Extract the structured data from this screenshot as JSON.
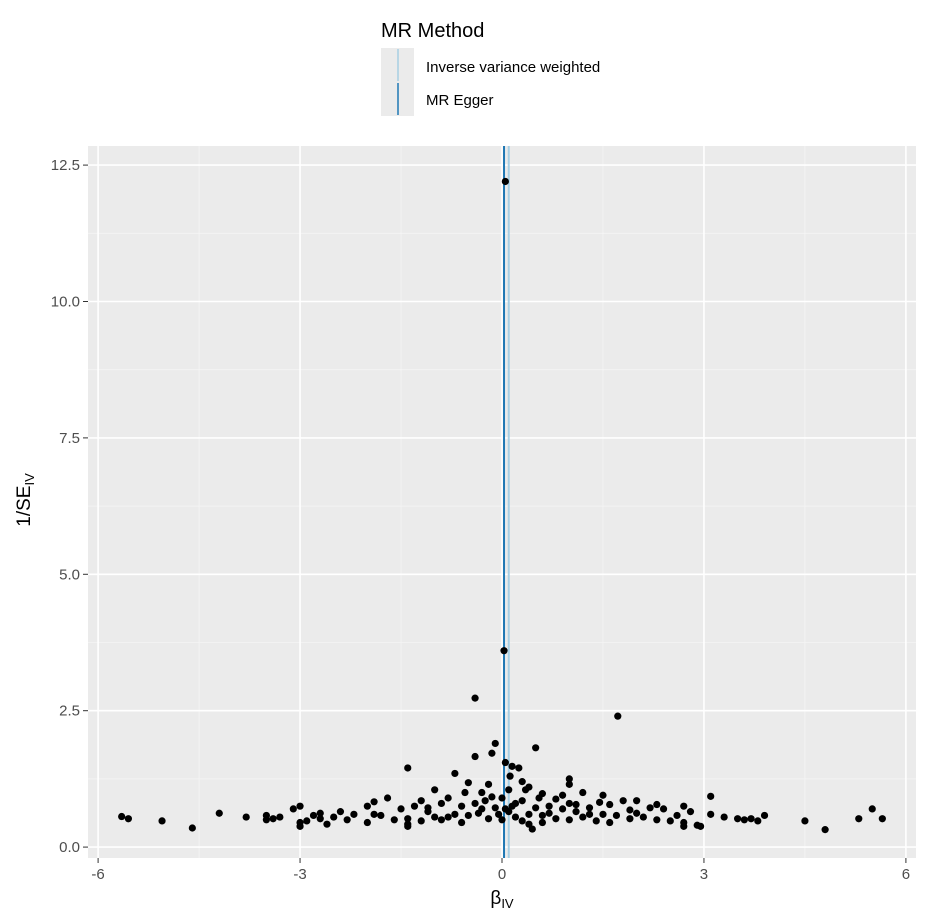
{
  "chart_data": {
    "type": "scatter",
    "x_label_main": "β",
    "x_label_sub": "IV",
    "y_label_main": "1/SE",
    "y_label_sub": "IV",
    "x_ticks": [
      "-6",
      "-3",
      "0",
      "3",
      "6"
    ],
    "y_ticks": [
      "0.0",
      "2.5",
      "5.0",
      "7.5",
      "10.0",
      "12.5"
    ],
    "xlim": [
      -6.15,
      6.15
    ],
    "ylim": [
      -0.2,
      12.85
    ],
    "grid": true,
    "legend": {
      "title": "MR Method",
      "position": "top",
      "entries": [
        {
          "label": "Inverse variance weighted",
          "color": "#a6cee3"
        },
        {
          "label": "MR Egger",
          "color": "#1f78b4"
        }
      ]
    },
    "lines": [
      {
        "name": "Inverse variance weighted",
        "x": 0.1,
        "color": "#a6cee3"
      },
      {
        "name": "MR Egger",
        "x": 0.03,
        "color": "#1f78b4"
      }
    ],
    "points": [
      [
        0.05,
        12.2
      ],
      [
        0.03,
        3.6
      ],
      [
        -0.4,
        2.73
      ],
      [
        1.72,
        2.4
      ],
      [
        -0.1,
        1.9
      ],
      [
        0.5,
        1.82
      ],
      [
        -0.15,
        1.72
      ],
      [
        -0.4,
        1.66
      ],
      [
        0.05,
        1.55
      ],
      [
        0.15,
        1.48
      ],
      [
        0.25,
        1.45
      ],
      [
        -1.4,
        1.45
      ],
      [
        -0.7,
        1.35
      ],
      [
        0.12,
        1.3
      ],
      [
        1.0,
        1.25
      ],
      [
        0.3,
        1.2
      ],
      [
        -0.5,
        1.18
      ],
      [
        -0.2,
        1.15
      ],
      [
        1.0,
        1.15
      ],
      [
        0.4,
        1.1
      ],
      [
        -1.0,
        1.05
      ],
      [
        0.1,
        1.05
      ],
      [
        1.2,
        1.0
      ],
      [
        -0.3,
        1.0
      ],
      [
        0.6,
        0.98
      ],
      [
        1.5,
        0.95
      ],
      [
        3.1,
        0.93
      ],
      [
        -1.7,
        0.9
      ],
      [
        -0.8,
        0.9
      ],
      [
        0.0,
        0.9
      ],
      [
        0.8,
        0.88
      ],
      [
        2.0,
        0.85
      ],
      [
        -1.2,
        0.85
      ],
      [
        1.8,
        0.85
      ],
      [
        0.3,
        0.85
      ],
      [
        -1.9,
        0.83
      ],
      [
        -0.4,
        0.8
      ],
      [
        0.2,
        0.8
      ],
      [
        1.0,
        0.8
      ],
      [
        -0.9,
        0.8
      ],
      [
        2.3,
        0.78
      ],
      [
        1.6,
        0.78
      ],
      [
        -3.0,
        0.75
      ],
      [
        -2.0,
        0.75
      ],
      [
        -1.3,
        0.75
      ],
      [
        -0.6,
        0.75
      ],
      [
        0.7,
        0.75
      ],
      [
        2.7,
        0.75
      ],
      [
        -0.1,
        0.72
      ],
      [
        0.5,
        0.72
      ],
      [
        1.3,
        0.72
      ],
      [
        2.2,
        0.72
      ],
      [
        5.5,
        0.7
      ],
      [
        -3.1,
        0.7
      ],
      [
        -1.5,
        0.7
      ],
      [
        -0.3,
        0.7
      ],
      [
        0.9,
        0.7
      ],
      [
        2.4,
        0.7
      ],
      [
        1.9,
        0.68
      ],
      [
        -2.4,
        0.65
      ],
      [
        -1.1,
        0.65
      ],
      [
        0.1,
        0.65
      ],
      [
        1.1,
        0.65
      ],
      [
        2.8,
        0.65
      ],
      [
        -4.2,
        0.62
      ],
      [
        -2.2,
        0.6
      ],
      [
        -0.7,
        0.6
      ],
      [
        0.4,
        0.6
      ],
      [
        1.5,
        0.6
      ],
      [
        3.1,
        0.6
      ],
      [
        3.9,
        0.58
      ],
      [
        -3.5,
        0.58
      ],
      [
        -2.8,
        0.58
      ],
      [
        -1.8,
        0.58
      ],
      [
        -0.5,
        0.58
      ],
      [
        0.6,
        0.58
      ],
      [
        1.7,
        0.58
      ],
      [
        2.6,
        0.58
      ],
      [
        -5.65,
        0.56
      ],
      [
        -3.3,
        0.55
      ],
      [
        -2.5,
        0.55
      ],
      [
        -1.0,
        0.55
      ],
      [
        0.2,
        0.55
      ],
      [
        1.2,
        0.55
      ],
      [
        2.1,
        0.55
      ],
      [
        -5.55,
        0.52
      ],
      [
        -3.4,
        0.52
      ],
      [
        -2.7,
        0.52
      ],
      [
        -1.4,
        0.52
      ],
      [
        -0.2,
        0.52
      ],
      [
        0.8,
        0.52
      ],
      [
        1.9,
        0.52
      ],
      [
        3.5,
        0.52
      ],
      [
        3.7,
        0.52
      ],
      [
        5.3,
        0.52
      ],
      [
        5.65,
        0.52
      ],
      [
        -3.5,
        0.5
      ],
      [
        -2.3,
        0.5
      ],
      [
        -1.6,
        0.5
      ],
      [
        -0.9,
        0.5
      ],
      [
        0.0,
        0.5
      ],
      [
        1.0,
        0.5
      ],
      [
        2.3,
        0.5
      ],
      [
        3.6,
        0.5
      ],
      [
        -5.05,
        0.48
      ],
      [
        -2.9,
        0.48
      ],
      [
        -1.2,
        0.48
      ],
      [
        0.3,
        0.48
      ],
      [
        1.4,
        0.48
      ],
      [
        2.5,
        0.48
      ],
      [
        3.8,
        0.48
      ],
      [
        4.5,
        0.48
      ],
      [
        -3.0,
        0.45
      ],
      [
        -2.0,
        0.45
      ],
      [
        -0.6,
        0.45
      ],
      [
        0.6,
        0.45
      ],
      [
        1.6,
        0.45
      ],
      [
        2.7,
        0.45
      ],
      [
        -2.6,
        0.42
      ],
      [
        -1.4,
        0.42
      ],
      [
        0.4,
        0.42
      ],
      [
        2.9,
        0.4
      ],
      [
        -3.0,
        0.38
      ],
      [
        -1.4,
        0.38
      ],
      [
        2.7,
        0.38
      ],
      [
        2.95,
        0.38
      ],
      [
        -4.6,
        0.35
      ],
      [
        0.45,
        0.33
      ],
      [
        4.8,
        0.32
      ],
      [
        -0.8,
        0.55
      ],
      [
        0.7,
        0.62
      ],
      [
        1.3,
        0.6
      ],
      [
        -0.35,
        0.62
      ],
      [
        0.15,
        0.75
      ],
      [
        -0.05,
        0.6
      ],
      [
        0.55,
        0.9
      ],
      [
        -0.25,
        0.85
      ],
      [
        1.1,
        0.78
      ],
      [
        -1.9,
        0.6
      ],
      [
        2.0,
        0.62
      ],
      [
        -2.7,
        0.62
      ],
      [
        3.3,
        0.55
      ],
      [
        -3.8,
        0.55
      ],
      [
        0.9,
        0.95
      ],
      [
        -0.55,
        1.0
      ],
      [
        0.35,
        1.05
      ],
      [
        -1.1,
        0.72
      ],
      [
        1.45,
        0.82
      ],
      [
        -0.15,
        0.92
      ],
      [
        0.05,
        0.7
      ]
    ]
  }
}
